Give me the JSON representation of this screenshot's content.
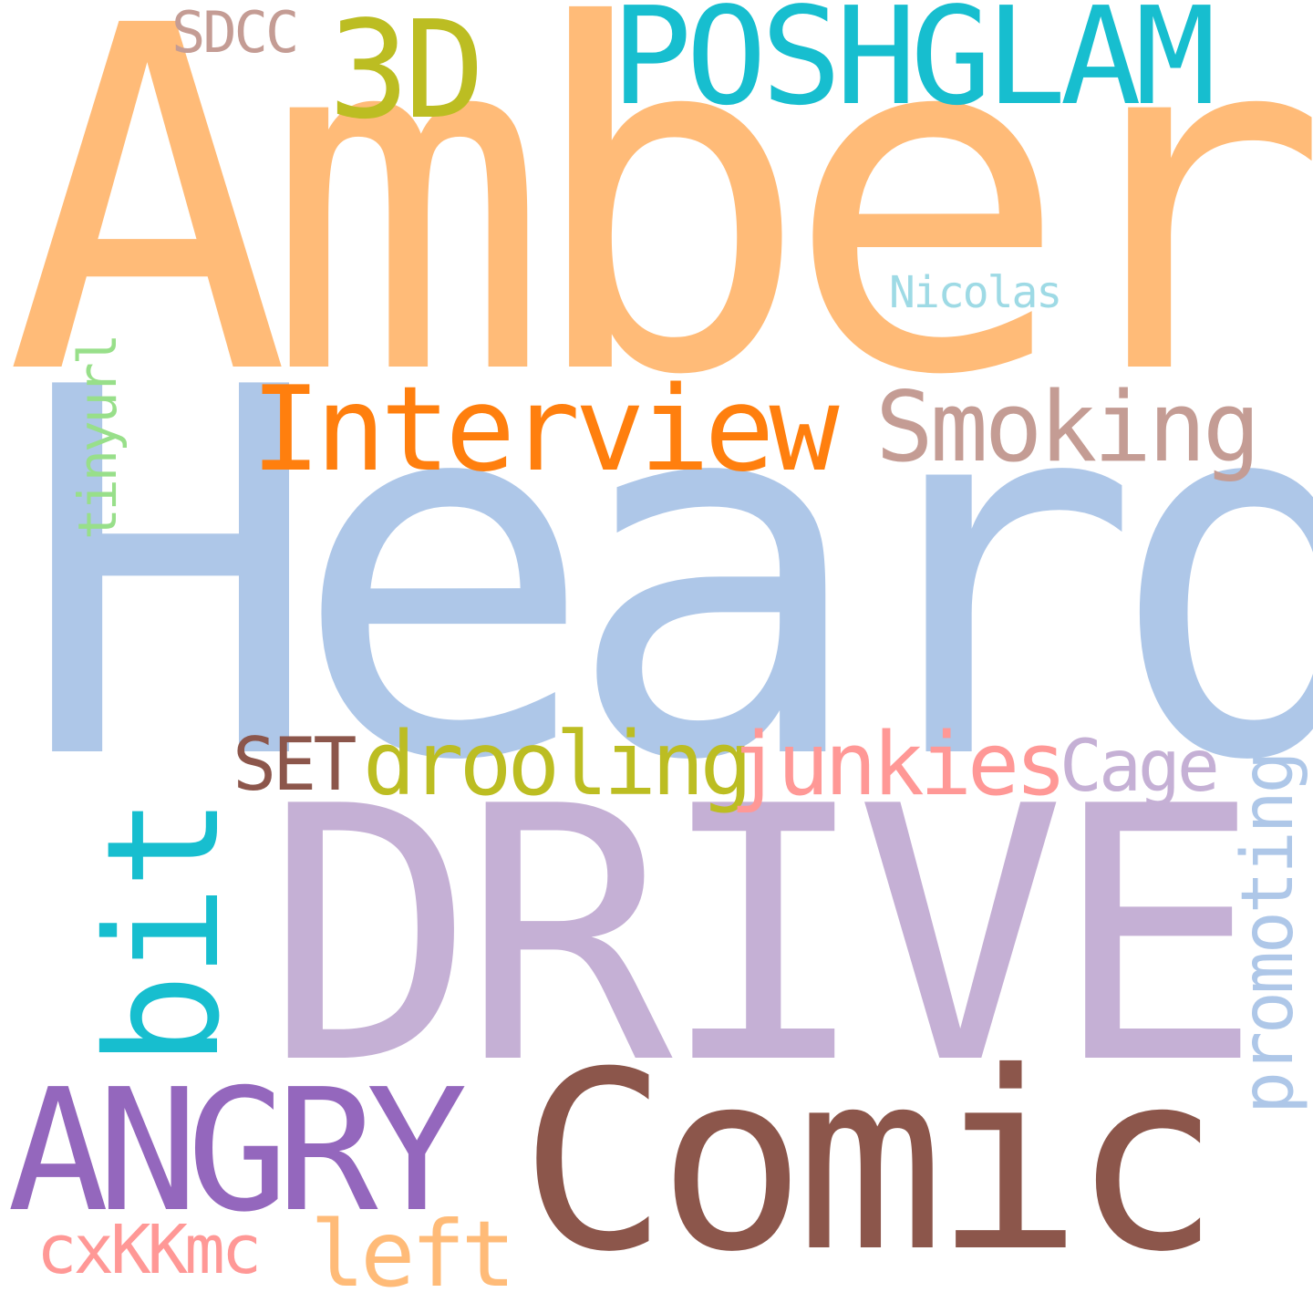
{
  "words": [
    {
      "text": "Amber",
      "color": "#ffbb78",
      "orientation": "horizontal"
    },
    {
      "text": "Heard",
      "color": "#aec7e8",
      "orientation": "horizontal"
    },
    {
      "text": "DRIVE",
      "color": "#c5b0d5",
      "orientation": "horizontal"
    },
    {
      "text": "Comic",
      "color": "#8c564b",
      "orientation": "horizontal"
    },
    {
      "text": "ANGRY",
      "color": "#9467bd",
      "orientation": "horizontal"
    },
    {
      "text": "POSHGLAM",
      "color": "#17becf",
      "orientation": "horizontal"
    },
    {
      "text": "3D",
      "color": "#bcbd22",
      "orientation": "horizontal"
    },
    {
      "text": "SDCC",
      "color": "#c49c94",
      "orientation": "horizontal"
    },
    {
      "text": "Interview",
      "color": "#ff7f0e",
      "orientation": "horizontal"
    },
    {
      "text": "Smoking",
      "color": "#c49c94",
      "orientation": "horizontal"
    },
    {
      "text": "Nicolas",
      "color": "#9edae5",
      "orientation": "horizontal"
    },
    {
      "text": "tinyurl",
      "color": "#98df8a",
      "orientation": "vertical"
    },
    {
      "text": "bit",
      "color": "#17becf",
      "orientation": "vertical"
    },
    {
      "text": "SET",
      "color": "#8c564b",
      "orientation": "horizontal"
    },
    {
      "text": "drooling",
      "color": "#bcbd22",
      "orientation": "horizontal"
    },
    {
      "text": "junkies",
      "color": "#ff9896",
      "orientation": "horizontal"
    },
    {
      "text": "Cage",
      "color": "#c5b0d5",
      "orientation": "horizontal"
    },
    {
      "text": "promoting",
      "color": "#aec7e8",
      "orientation": "vertical"
    },
    {
      "text": "cxKKmc",
      "color": "#ff9896",
      "orientation": "horizontal"
    },
    {
      "text": "left",
      "color": "#ffbb78",
      "orientation": "horizontal"
    }
  ]
}
